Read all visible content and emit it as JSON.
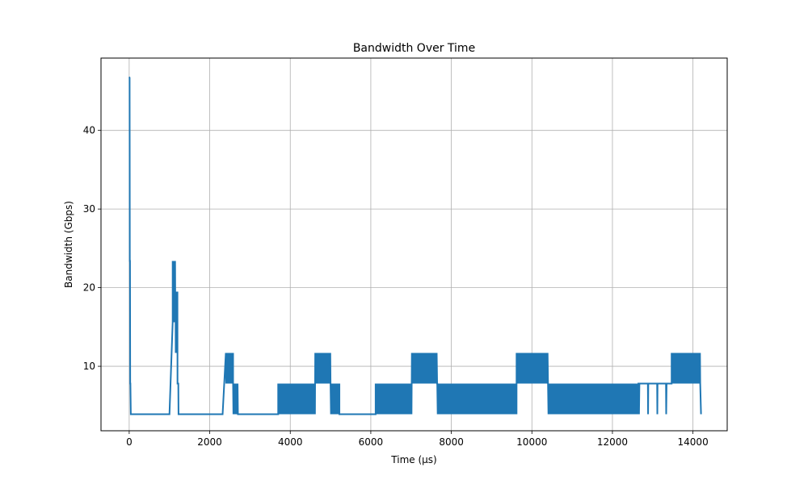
{
  "chart_data": {
    "type": "line",
    "title": "Bandwidth Over Time",
    "xlabel": "Time (µs)",
    "ylabel": "Bandwidth (Gbps)",
    "xlim": [
      -700,
      14850
    ],
    "ylim": [
      1.8,
      49.2
    ],
    "xticks": [
      0,
      2000,
      4000,
      6000,
      8000,
      10000,
      12000,
      14000
    ],
    "yticks": [
      10,
      20,
      30,
      40
    ],
    "grid": true,
    "legend": "none",
    "series_color": "#1f77b4",
    "series": [
      {
        "segments": [
          {
            "type": "points",
            "x": [
              0,
              10,
              15,
              20,
              25,
              30,
              40,
              60,
              80
            ],
            "y": [
              46.8,
              46.7,
              23.4,
              23.4,
              7.8,
              7.8,
              3.9,
              3.9,
              3.9
            ]
          },
          {
            "type": "points",
            "x": [
              1000,
              1080
            ],
            "y": [
              3.9,
              15.6
            ]
          },
          {
            "type": "osc",
            "x0": 1080,
            "x1": 1150,
            "lo": 15.6,
            "hi": 23.4,
            "step": 6
          },
          {
            "type": "osc",
            "x0": 1150,
            "x1": 1200,
            "lo": 11.7,
            "hi": 19.5,
            "step": 6
          },
          {
            "type": "points",
            "x": [
              1200,
              1220,
              1225,
              1240,
              2320,
              2400
            ],
            "y": [
              7.8,
              7.8,
              3.9,
              3.9,
              3.9,
              11.7
            ]
          },
          {
            "type": "osc",
            "x0": 2400,
            "x1": 2580,
            "lo": 7.8,
            "hi": 11.7,
            "step": 10
          },
          {
            "type": "osc",
            "x0": 2580,
            "x1": 2700,
            "lo": 3.9,
            "hi": 7.8,
            "step": 8
          },
          {
            "type": "points",
            "x": [
              2700,
              3700
            ],
            "y": [
              3.9,
              3.9
            ]
          },
          {
            "type": "osc",
            "x0": 3700,
            "x1": 4620,
            "lo": 3.9,
            "hi": 7.8,
            "step": 11
          },
          {
            "type": "osc",
            "x0": 4620,
            "x1": 5000,
            "lo": 7.8,
            "hi": 11.7,
            "step": 11
          },
          {
            "type": "osc",
            "x0": 5000,
            "x1": 5220,
            "lo": 3.9,
            "hi": 7.8,
            "step": 11
          },
          {
            "type": "points",
            "x": [
              5220,
              6120
            ],
            "y": [
              3.9,
              3.9
            ]
          },
          {
            "type": "osc",
            "x0": 6120,
            "x1": 7020,
            "lo": 3.9,
            "hi": 7.8,
            "step": 11
          },
          {
            "type": "osc",
            "x0": 7020,
            "x1": 7650,
            "lo": 7.8,
            "hi": 11.7,
            "step": 11
          },
          {
            "type": "osc",
            "x0": 7650,
            "x1": 9620,
            "lo": 3.9,
            "hi": 7.8,
            "step": 11
          },
          {
            "type": "osc",
            "x0": 9620,
            "x1": 10400,
            "lo": 7.8,
            "hi": 11.7,
            "step": 11
          },
          {
            "type": "osc",
            "x0": 10400,
            "x1": 12650,
            "lo": 3.9,
            "hi": 7.8,
            "step": 11
          },
          {
            "type": "points",
            "x": [
              12650,
              12660,
              12670,
              12880,
              12885,
              12890,
              13110,
              13115,
              13120,
              13330,
              13335,
              13345,
              13470
            ],
            "y": [
              7.8,
              3.9,
              7.8,
              7.8,
              3.9,
              7.8,
              7.8,
              3.9,
              7.8,
              7.8,
              3.9,
              7.8,
              7.8
            ]
          },
          {
            "type": "osc",
            "x0": 13470,
            "x1": 14180,
            "lo": 7.8,
            "hi": 11.7,
            "step": 11
          },
          {
            "type": "points",
            "x": [
              14180,
              14200
            ],
            "y": [
              7.8,
              3.9
            ]
          }
        ]
      }
    ]
  }
}
